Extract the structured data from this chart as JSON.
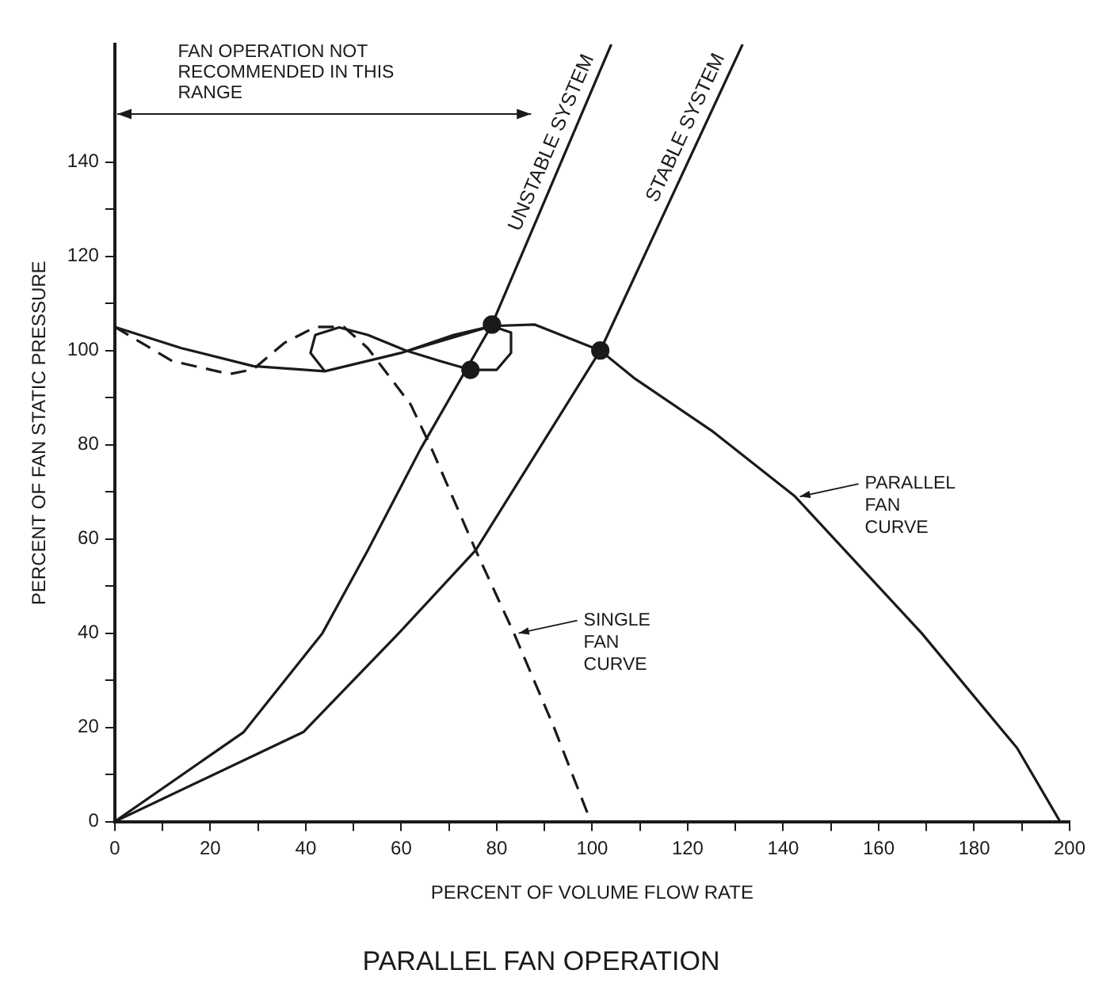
{
  "chart_data": {
    "type": "line",
    "title": "PARALLEL FAN OPERATION",
    "xlabel": "PERCENT OF VOLUME FLOW RATE",
    "ylabel": "PERCENT OF FAN STATIC PRESSURE",
    "xlim": [
      0,
      200
    ],
    "ylim": [
      0,
      165
    ],
    "xticks": [
      0,
      {
        "value": 10,
        "label": null
      },
      20,
      {
        "value": 30,
        "label": null
      },
      40,
      {
        "value": 50,
        "label": null
      },
      60,
      {
        "value": 70,
        "label": null
      },
      80,
      {
        "value": 90,
        "label": null
      },
      100,
      {
        "value": 110,
        "label": null
      },
      120,
      {
        "value": 130,
        "label": null
      },
      140,
      {
        "value": 150,
        "label": null
      },
      160,
      {
        "value": 170,
        "label": null
      },
      180,
      {
        "value": 190,
        "label": null
      },
      200
    ],
    "yticks": [
      0,
      {
        "value": 10,
        "label": null
      },
      20,
      {
        "value": 30,
        "label": null
      },
      40,
      {
        "value": 50,
        "label": null
      },
      60,
      {
        "value": 70,
        "label": null
      },
      80,
      {
        "value": 90,
        "label": null
      },
      100,
      {
        "value": 110,
        "label": null
      },
      120,
      {
        "value": 130,
        "label": null
      },
      140
    ],
    "grid": false,
    "legend": false,
    "series": [
      {
        "color": "#1a1a1a",
        "x": [
          0,
          14,
          29,
          44,
          60,
          71,
          79,
          83,
          83,
          80,
          74.5,
          68,
          61,
          53,
          47,
          42,
          41,
          44,
          60,
          79,
          88,
          101.7,
          109,
          125,
          142.5,
          169,
          189,
          198
        ],
        "values": [
          105,
          100.5,
          96.7,
          95.6,
          99.5,
          103.3,
          105.2,
          103.8,
          99.5,
          95.9,
          95.9,
          97.8,
          100,
          103.3,
          104.9,
          103.3,
          99.5,
          95.6,
          99.5,
          105.2,
          105.5,
          100,
          94,
          83,
          69,
          40,
          15.6,
          0
        ]
      },
      {
        "color": "#1a1a1a",
        "line_style": "dashed",
        "x": [
          0,
          12,
          24,
          29,
          35.5,
          42,
          48,
          53,
          62,
          66,
          75.6,
          83.6,
          92,
          99.7
        ],
        "values": [
          105,
          97.8,
          95,
          96,
          101.6,
          105,
          105,
          100.5,
          88.5,
          80,
          57.6,
          40,
          20,
          0
        ]
      },
      {
        "name": "UNSTABLE SYSTEM",
        "color": "#1a1a1a",
        "x": [
          0,
          27,
          43.5,
          53,
          64,
          79,
          104
        ],
        "values": [
          0,
          19,
          40,
          57.6,
          79,
          105.5,
          165
        ]
      },
      {
        "name": "STABLE SYSTEM",
        "color": "#1a1a1a",
        "x": [
          0,
          39.5,
          59.5,
          75.6,
          101.7,
          131.5
        ],
        "values": [
          0,
          19,
          40,
          57.6,
          100,
          165
        ]
      },
      {
        "type": "scatter",
        "marker": "circle",
        "color": "#1a1a1a",
        "x": [
          74.5,
          79,
          101.7
        ],
        "values": [
          95.9,
          105.5,
          100
        ]
      }
    ],
    "annotations": [
      "FAN OPERATION NOT RECOMMENDED IN THIS RANGE",
      {
        "text": "PARALLEL FAN CURVE",
        "x": 142.5,
        "y": 69
      },
      {
        "text": "SINGLE FAN CURVE",
        "x": 83.6,
        "y": 40
      }
    ]
  }
}
